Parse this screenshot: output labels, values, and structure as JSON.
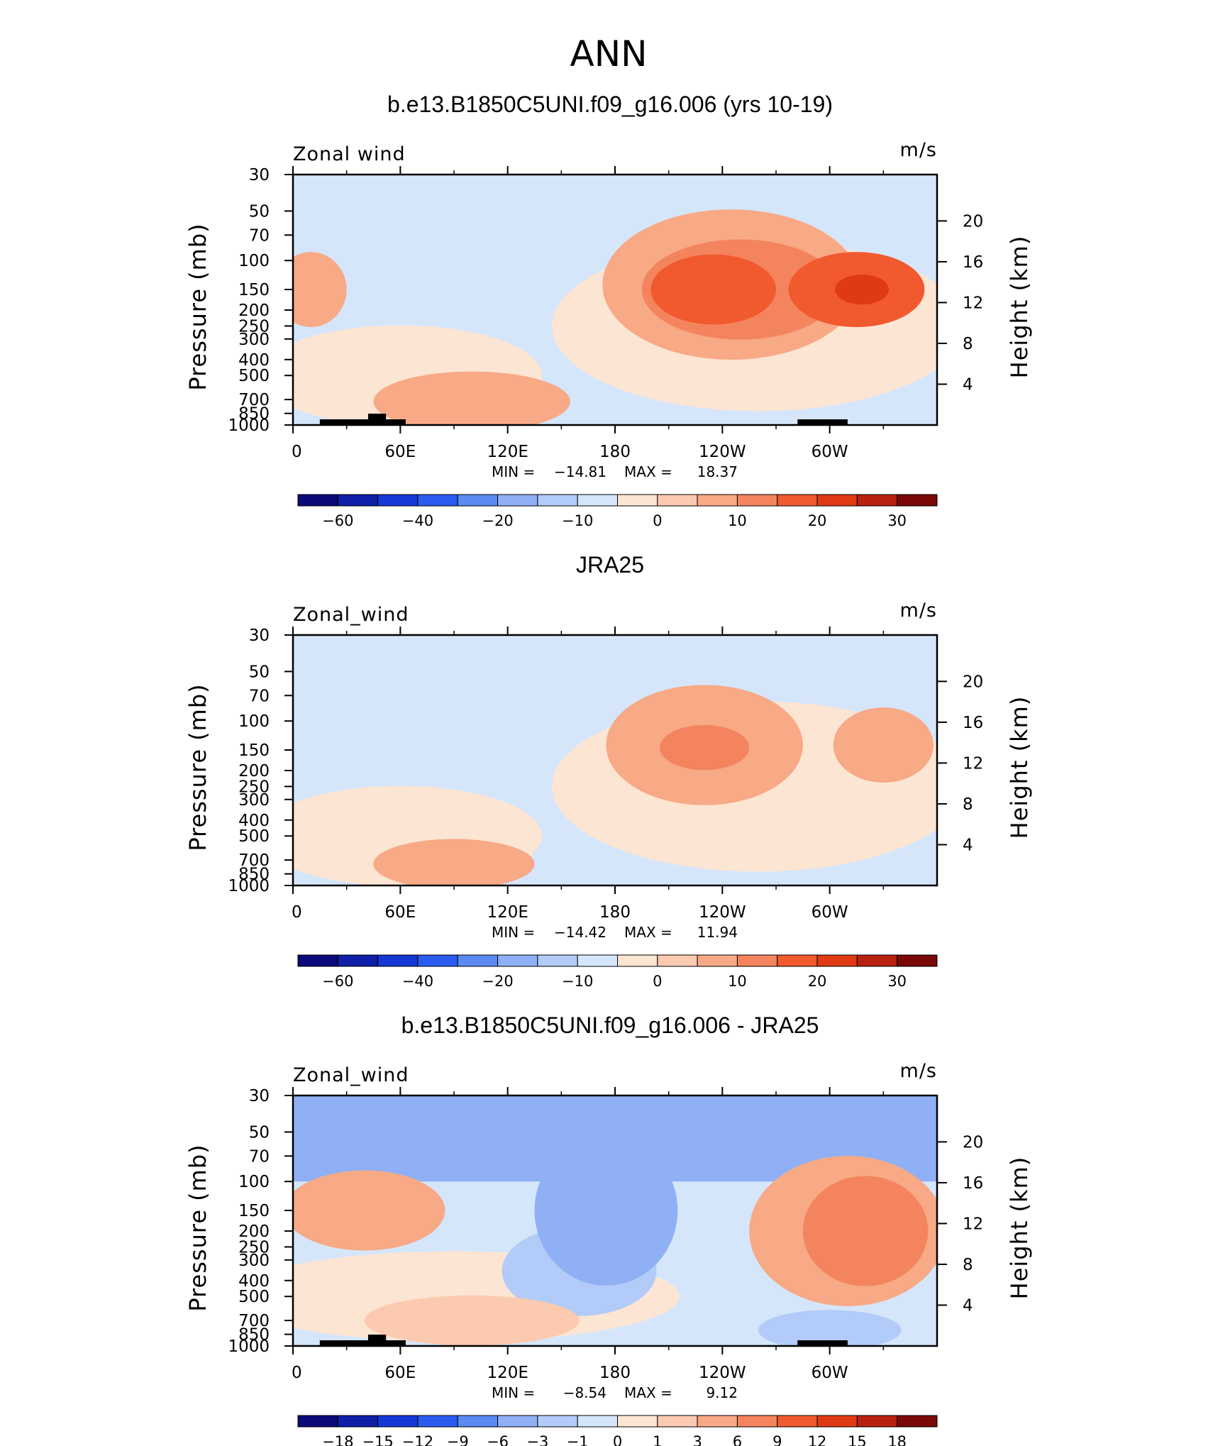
{
  "figure": {
    "title": "ANN",
    "colors": {
      "scale": [
        "#0a0a7a",
        "#0e1fa8",
        "#1638d6",
        "#2a5cf0",
        "#5a8af2",
        "#8fb0f5",
        "#b3cbf8",
        "#d5e6fb",
        "#fde5d3",
        "#fbcab0",
        "#f8a986",
        "#f4845e",
        "#f05a2e",
        "#e03a15",
        "#b82010",
        "#7a0808"
      ]
    }
  },
  "panels": [
    {
      "title": "b.e13.B1850C5UNI.f09_g16.006 (yrs 10-19)",
      "variable": "Zonal wind",
      "units": "m/s",
      "ylabel": "Pressure (mb)",
      "y2label": "Height (km)",
      "stats": {
        "min_label": "MIN",
        "min": "−14.81",
        "max_label": "MAX",
        "max": "18.37"
      }
    },
    {
      "title": "JRA25",
      "variable": "Zonal_wind",
      "units": "m/s",
      "ylabel": "Pressure (mb)",
      "y2label": "Height (km)",
      "stats": {
        "min_label": "MIN",
        "min": "−14.42",
        "max_label": "MAX",
        "max": "11.94"
      }
    },
    {
      "title": "b.e13.B1850C5UNI.f09_g16.006 - JRA25",
      "variable": "Zonal_wind",
      "units": "m/s",
      "ylabel": "Pressure (mb)",
      "y2label": "Height (km)",
      "stats": {
        "min_label": "MIN",
        "min": "−8.54",
        "max_label": "MAX",
        "max": "9.12"
      }
    }
  ],
  "chart_data": [
    {
      "type": "heatmap",
      "title": "b.e13.B1850C5UNI.f09_g16.006 (yrs 10-19)",
      "xlabel": "",
      "ylabel": "Pressure (mb)",
      "y2label": "Height (km)",
      "x_ticks": [
        "0",
        "60E",
        "120E",
        "180",
        "120W",
        "60W"
      ],
      "y_ticks": [
        "30",
        "50",
        "70",
        "100",
        "150",
        "200",
        "250",
        "300",
        "400",
        "500",
        "700",
        "850",
        "1000"
      ],
      "y2_ticks": [
        "20",
        "16",
        "12",
        "8",
        "4"
      ],
      "x_range": [
        0,
        360
      ],
      "y_range": [
        1000,
        30
      ],
      "y_log": true,
      "colorbar_labels": [
        "−60",
        "−40",
        "−20",
        "−10",
        "0",
        "10",
        "20",
        "30"
      ],
      "min": -14.81,
      "max": 18.37,
      "units": "m/s",
      "blobs": [
        {
          "lon": 110,
          "p": 140,
          "rx": 42,
          "ry": 0.13,
          "value": -10
        },
        {
          "lon": 245,
          "p": 140,
          "rx": 72,
          "ry": 0.3,
          "value": 5
        },
        {
          "lon": 250,
          "p": 150,
          "rx": 55,
          "ry": 0.2,
          "value": 10
        },
        {
          "lon": 235,
          "p": 150,
          "rx": 35,
          "ry": 0.14,
          "value": 15
        },
        {
          "lon": 315,
          "p": 150,
          "rx": 38,
          "ry": 0.15,
          "value": 15
        },
        {
          "lon": 318,
          "p": 150,
          "rx": 15,
          "ry": 0.06,
          "value": 20
        },
        {
          "lon": 100,
          "p": 720,
          "rx": 55,
          "ry": 0.12,
          "value": 5
        },
        {
          "lon": 10,
          "p": 150,
          "rx": 20,
          "ry": 0.15,
          "value": 5
        }
      ]
    },
    {
      "type": "heatmap",
      "title": "JRA25",
      "xlabel": "",
      "ylabel": "Pressure (mb)",
      "y2label": "Height (km)",
      "x_ticks": [
        "0",
        "60E",
        "120E",
        "180",
        "120W",
        "60W"
      ],
      "y_ticks": [
        "30",
        "50",
        "70",
        "100",
        "150",
        "200",
        "250",
        "300",
        "400",
        "500",
        "700",
        "850",
        "1000"
      ],
      "y2_ticks": [
        "20",
        "16",
        "12",
        "8",
        "4"
      ],
      "x_range": [
        0,
        360
      ],
      "y_range": [
        1000,
        30
      ],
      "y_log": true,
      "colorbar_labels": [
        "−60",
        "−40",
        "−20",
        "−10",
        "0",
        "10",
        "20",
        "30"
      ],
      "min": -14.42,
      "max": 11.94,
      "units": "m/s",
      "blobs": [
        {
          "lon": 95,
          "p": 160,
          "rx": 45,
          "ry": 0.14,
          "value": -10
        },
        {
          "lon": 230,
          "p": 140,
          "rx": 55,
          "ry": 0.24,
          "value": 5
        },
        {
          "lon": 230,
          "p": 145,
          "rx": 25,
          "ry": 0.09,
          "value": 10
        },
        {
          "lon": 330,
          "p": 140,
          "rx": 28,
          "ry": 0.15,
          "value": 5
        },
        {
          "lon": 90,
          "p": 740,
          "rx": 45,
          "ry": 0.1,
          "value": 5
        }
      ]
    },
    {
      "type": "heatmap",
      "title": "b.e13.B1850C5UNI.f09_g16.006 - JRA25",
      "xlabel": "",
      "ylabel": "Pressure (mb)",
      "y2label": "Height (km)",
      "x_ticks": [
        "0",
        "60E",
        "120E",
        "180",
        "120W",
        "60W"
      ],
      "y_ticks": [
        "30",
        "50",
        "70",
        "100",
        "150",
        "200",
        "250",
        "300",
        "400",
        "500",
        "700",
        "850",
        "1000"
      ],
      "y2_ticks": [
        "20",
        "16",
        "12",
        "8",
        "4"
      ],
      "x_range": [
        0,
        360
      ],
      "y_range": [
        1000,
        30
      ],
      "y_log": true,
      "colorbar_labels": [
        "−18",
        "−15",
        "−12",
        "−9",
        "−6",
        "−3",
        "−1",
        "0",
        "1",
        "3",
        "6",
        "9",
        "12",
        "15",
        "18"
      ],
      "min": -8.54,
      "max": 9.12,
      "units": "m/s",
      "blobs": [
        {
          "lon": 160,
          "p": 55,
          "rx": 150,
          "ry": 0.12,
          "value": -6
        },
        {
          "lon": 175,
          "p": 150,
          "rx": 40,
          "ry": 0.3,
          "value": -6
        },
        {
          "lon": 40,
          "p": 150,
          "rx": 45,
          "ry": 0.16,
          "value": 3
        },
        {
          "lon": 310,
          "p": 200,
          "rx": 55,
          "ry": 0.3,
          "value": 3
        },
        {
          "lon": 320,
          "p": 200,
          "rx": 35,
          "ry": 0.22,
          "value": 6
        },
        {
          "lon": 100,
          "p": 700,
          "rx": 60,
          "ry": 0.1,
          "value": 1
        },
        {
          "lon": 300,
          "p": 800,
          "rx": 40,
          "ry": 0.08,
          "value": -3
        }
      ]
    }
  ]
}
